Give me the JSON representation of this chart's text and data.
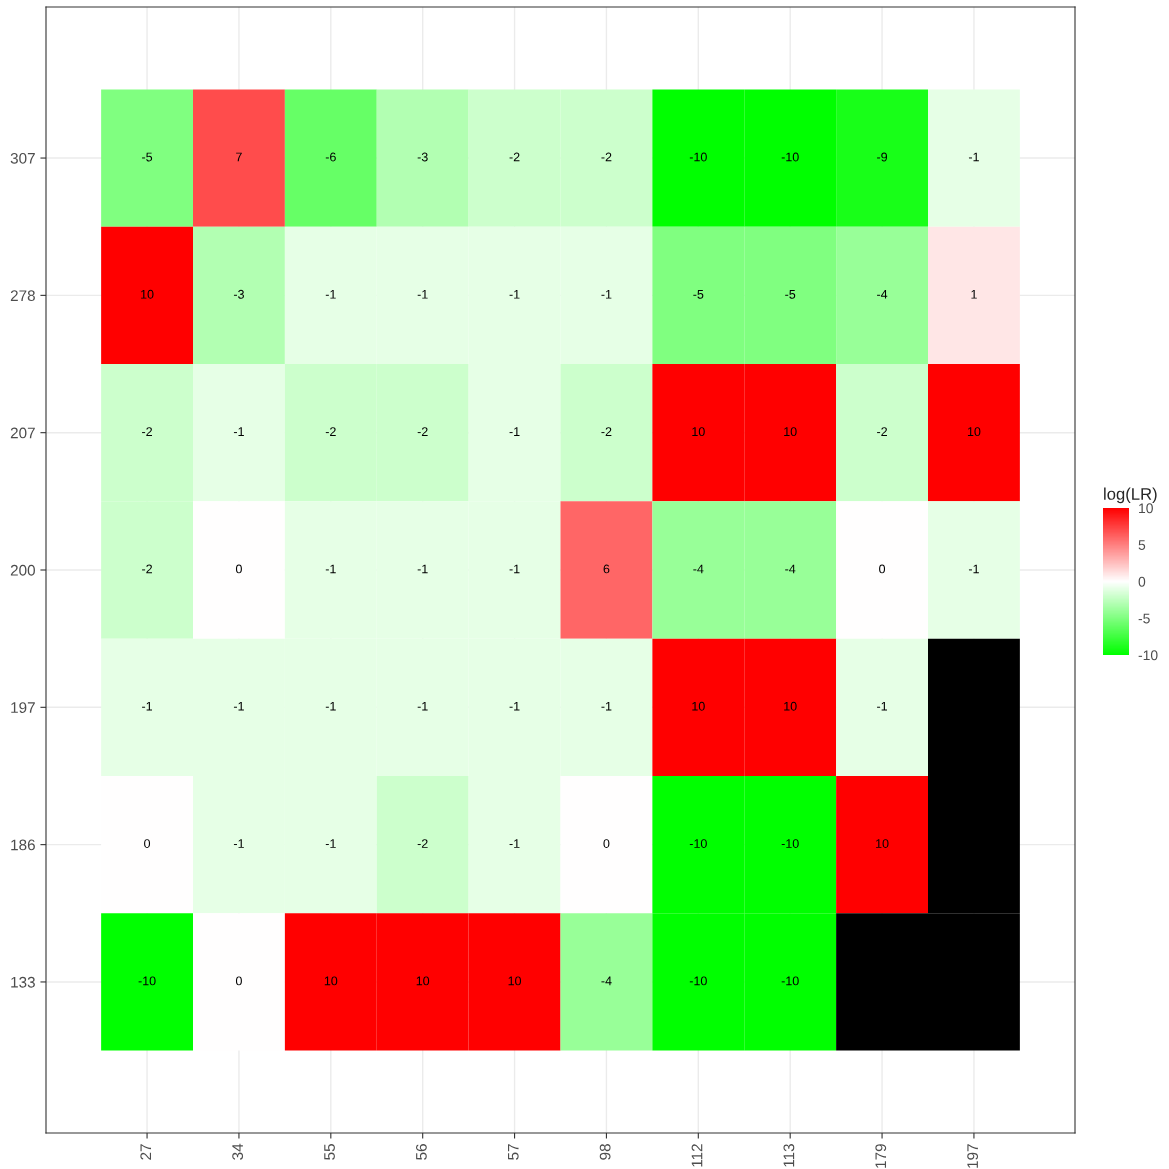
{
  "chart_data": {
    "type": "heatmap",
    "clabel": "log(LR)",
    "categories": [
      "27",
      "34",
      "55",
      "56",
      "57",
      "98",
      "112",
      "113",
      "179",
      "197"
    ],
    "y_categories": [
      "307",
      "278",
      "207",
      "200",
      "197",
      "186",
      "133"
    ],
    "cells": [
      [
        -5,
        7,
        -6,
        -3,
        -2,
        -2,
        -10,
        -10,
        -9,
        -1
      ],
      [
        10,
        -3,
        -1,
        -1,
        -1,
        -1,
        -5,
        -5,
        -4,
        1
      ],
      [
        -2,
        -1,
        -2,
        -2,
        -1,
        -2,
        10,
        10,
        -2,
        10
      ],
      [
        -2,
        0,
        -1,
        -1,
        -1,
        6,
        -4,
        -4,
        0,
        -1
      ],
      [
        -1,
        -1,
        -1,
        -1,
        -1,
        -1,
        10,
        10,
        -1,
        null
      ],
      [
        0,
        -1,
        -1,
        -2,
        -1,
        0,
        -10,
        -10,
        10,
        null
      ],
      [
        -10,
        0,
        10,
        10,
        10,
        -4,
        -10,
        -10,
        null,
        null
      ]
    ],
    "data_labels": true,
    "clim": [
      -10,
      10
    ],
    "cticks": [
      -10,
      -5,
      0,
      5,
      10
    ],
    "colors": [
      "#00ff00",
      "#ffffff",
      "#ff0000"
    ],
    "grid": true
  }
}
